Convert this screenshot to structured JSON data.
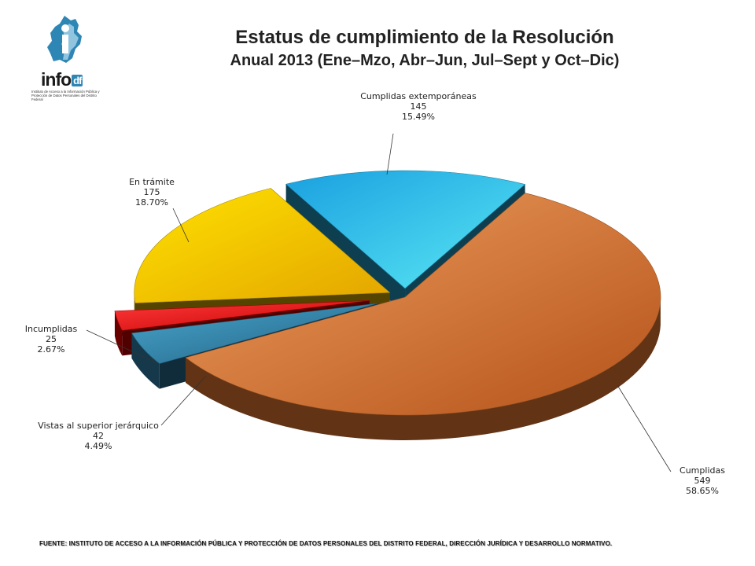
{
  "logo": {
    "word": "info",
    "suffix": "df",
    "subtitle": "Instituto de Acceso a la Información Pública y Protección de Datos Personales del Distrito Federal"
  },
  "chart_data": {
    "type": "pie",
    "title": "Estatus de cumplimiento de la Resolución",
    "subtitle": "Anual 2013 (Ene–Mzo, Abr–Jun, Jul–Sept y Oct–Dic)",
    "slices": [
      {
        "label": "Cumplidas",
        "value": 549,
        "percent": "58.65%",
        "color": "#d9732e"
      },
      {
        "label": "Vistas al superior jerárquico",
        "value": 42,
        "percent": "4.49%",
        "color": "#2e7fa6"
      },
      {
        "label": "Incumplidas",
        "value": 25,
        "percent": "2.67%",
        "color": "#e60000"
      },
      {
        "label": "En trámite",
        "value": 175,
        "percent": "18.70%",
        "color": "#f2c200"
      },
      {
        "label": "Cumplidas extemporáneas",
        "value": 145,
        "percent": "15.49%",
        "color": "#26b3e6"
      }
    ],
    "exploded": true,
    "three_d": true
  },
  "footer": "FUENTE: INSTITUTO DE ACCESO A LA INFORMACIÓN PÚBLICA Y PROTECCIÓN DE DATOS PERSONALES DEL DISTRITO FEDERAL, DIRECCIÓN JURÍDICA Y DESARROLLO NORMATIVO."
}
